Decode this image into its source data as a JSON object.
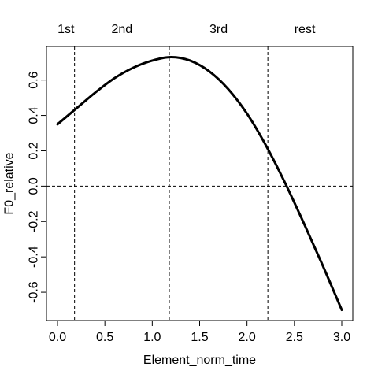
{
  "chart_data": {
    "type": "line",
    "xlabel": "Element_norm_time",
    "ylabel": "F0_relative",
    "xlim": [
      0.0,
      3.0
    ],
    "ylim": [
      -0.7,
      0.73
    ],
    "x_ticks": [
      0.0,
      0.5,
      1.0,
      1.5,
      2.0,
      2.5,
      3.0
    ],
    "x_tick_labels": [
      "0.0",
      "0.5",
      "1.0",
      "1.5",
      "2.0",
      "2.5",
      "3.0"
    ],
    "y_ticks": [
      -0.6,
      -0.4,
      -0.2,
      0.0,
      0.2,
      0.4,
      0.6
    ],
    "y_tick_labels": [
      "-0.6",
      "-0.4",
      "-0.2",
      "0.0",
      "0.2",
      "0.4",
      "0.6"
    ],
    "grid": false,
    "vertical_reference_lines": [
      0.18,
      1.18,
      2.22
    ],
    "horizontal_reference_lines": [
      0.0
    ],
    "segment_labels": [
      {
        "text": "1st",
        "x": 0.09
      },
      {
        "text": "2nd",
        "x": 0.68
      },
      {
        "text": "3rd",
        "x": 1.7
      },
      {
        "text": "rest",
        "x": 2.61
      }
    ],
    "series": [
      {
        "x": [
          0.0,
          0.2,
          0.4,
          0.6,
          0.8,
          1.0,
          1.2,
          1.4,
          1.6,
          1.8,
          2.0,
          2.2,
          2.4,
          2.6,
          2.8,
          3.0
        ],
        "y": [
          0.35,
          0.44,
          0.53,
          0.61,
          0.67,
          0.71,
          0.73,
          0.71,
          0.65,
          0.55,
          0.41,
          0.23,
          0.02,
          -0.21,
          -0.45,
          -0.7
        ]
      }
    ]
  }
}
